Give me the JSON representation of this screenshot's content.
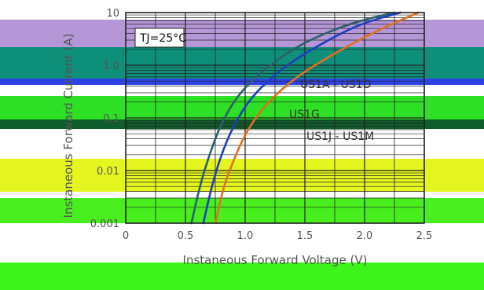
{
  "chart_data": {
    "type": "line",
    "title": "",
    "xlabel": "Instaneous Forward Voltage (V)",
    "ylabel": "Instaneous Forward Current (A)",
    "xlim": [
      0,
      2.5
    ],
    "ylim": [
      0.001,
      10
    ],
    "yscale": "log",
    "x_ticks": [
      0,
      0.5,
      1.0,
      1.5,
      2.0,
      2.5
    ],
    "x_tick_labels": [
      "0",
      "0.5",
      "1.0",
      "1.5",
      "2.0",
      "2.5"
    ],
    "y_ticks": [
      0.001,
      0.01,
      0.1,
      1.0,
      10
    ],
    "y_tick_labels": [
      "0.001",
      "0.01",
      "0.1",
      "1.0",
      "10"
    ],
    "grid": true,
    "annotations": {
      "condition": "TJ=25°C",
      "group_a": "US1A - US1D",
      "group_g": "US1G",
      "group_j": "US1J - US1M"
    },
    "series": [
      {
        "name": "US1A - US1D",
        "color": "#2d5f6b",
        "points": [
          [
            0.55,
            0.001
          ],
          [
            0.62,
            0.005
          ],
          [
            0.7,
            0.02
          ],
          [
            0.8,
            0.08
          ],
          [
            0.95,
            0.3
          ],
          [
            1.2,
            1.0
          ],
          [
            1.5,
            2.8
          ],
          [
            1.9,
            6.5
          ],
          [
            2.25,
            10
          ]
        ]
      },
      {
        "name": "US1G",
        "color": "#1f3fbf",
        "points": [
          [
            0.65,
            0.001
          ],
          [
            0.72,
            0.005
          ],
          [
            0.8,
            0.02
          ],
          [
            0.9,
            0.07
          ],
          [
            1.05,
            0.25
          ],
          [
            1.3,
            0.85
          ],
          [
            1.6,
            2.3
          ],
          [
            1.95,
            6.0
          ],
          [
            2.3,
            10
          ]
        ]
      },
      {
        "name": "US1J - US1M",
        "color": "#e07020",
        "points": [
          [
            0.75,
            0.001
          ],
          [
            0.82,
            0.005
          ],
          [
            0.9,
            0.015
          ],
          [
            1.0,
            0.05
          ],
          [
            1.15,
            0.16
          ],
          [
            1.4,
            0.55
          ],
          [
            1.75,
            1.7
          ],
          [
            2.1,
            4.5
          ],
          [
            2.45,
            10
          ]
        ]
      }
    ]
  }
}
